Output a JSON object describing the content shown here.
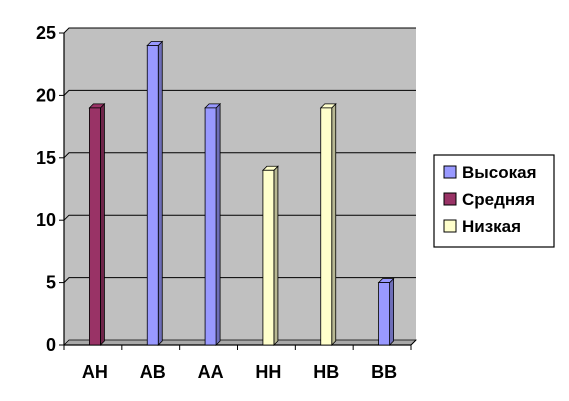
{
  "chart_data": {
    "type": "bar",
    "categories": [
      "АН",
      "АВ",
      "АА",
      "НН",
      "НВ",
      "ВВ"
    ],
    "series": [
      {
        "name": "Высокая",
        "color": "#9999ff",
        "values": [
          null,
          24,
          19,
          null,
          null,
          5
        ]
      },
      {
        "name": "Средняя",
        "color": "#993366",
        "values": [
          19,
          null,
          null,
          null,
          null,
          null
        ]
      },
      {
        "name": "Низкая",
        "color": "#ffffcc",
        "values": [
          null,
          null,
          null,
          14,
          19,
          null
        ]
      }
    ],
    "ylim": [
      0,
      25
    ],
    "yticks": [
      0,
      5,
      10,
      15,
      20,
      25
    ],
    "grid": true,
    "legend_position": "right",
    "plot_background": "#c0c0c0"
  }
}
